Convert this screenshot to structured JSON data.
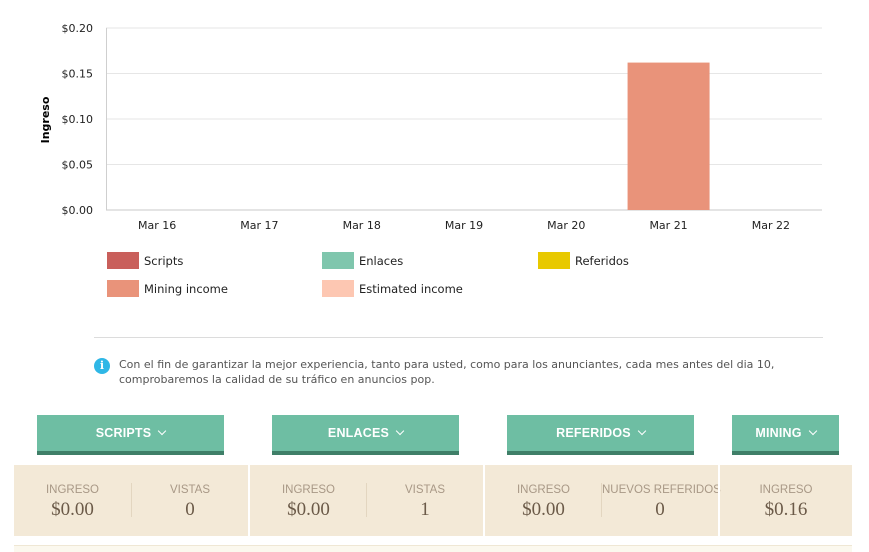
{
  "chart_data": {
    "type": "bar",
    "categories": [
      "Mar 16",
      "Mar 17",
      "Mar 18",
      "Mar 19",
      "Mar 20",
      "Mar 21",
      "Mar 22"
    ],
    "series": [
      {
        "name": "Scripts",
        "color": "#c95f5b",
        "values": [
          0,
          0,
          0,
          0,
          0,
          0,
          0
        ]
      },
      {
        "name": "Enlaces",
        "color": "#7fc6ad",
        "values": [
          0,
          0,
          0,
          0,
          0,
          0,
          0
        ]
      },
      {
        "name": "Referidos",
        "color": "#e8c900",
        "values": [
          0,
          0,
          0,
          0,
          0,
          0,
          0
        ]
      },
      {
        "name": "Mining income",
        "color": "#e9937a",
        "values": [
          0,
          0,
          0,
          0,
          0,
          0.162,
          0
        ]
      },
      {
        "name": "Estimated income",
        "color": "#fdc7b2",
        "values": [
          0,
          0,
          0,
          0,
          0,
          0,
          0
        ]
      }
    ],
    "ylabel": "Ingreso",
    "yticks": [
      "$0.00",
      "$0.05",
      "$0.10",
      "$0.15",
      "$0.20"
    ],
    "ylim": [
      0,
      0.2
    ],
    "grid": true,
    "stacked": true
  },
  "notice": {
    "icon": "info-icon",
    "text": "Con el fin de garantizar la mejor experiencia, tanto para usted, como para los anunciantes, cada mes antes del dia 10, comprobaremos la calidad de su tráfico en anuncios pop."
  },
  "tabs": [
    {
      "label": "SCRIPTS"
    },
    {
      "label": "ENLACES"
    },
    {
      "label": "REFERIDOS"
    },
    {
      "label": "MINING"
    }
  ],
  "stats": {
    "scripts": {
      "income_label": "INGRESO",
      "income": "$0.00",
      "views_label": "VISTAS",
      "views": "0"
    },
    "enlaces": {
      "income_label": "INGRESO",
      "income": "$0.00",
      "views_label": "VISTAS",
      "views": "1"
    },
    "referidos": {
      "income_label": "INGRESO",
      "income": "$0.00",
      "new_label": "NUEVOS REFERIDOS",
      "new": "0"
    },
    "mining": {
      "income_label": "INGRESO",
      "income": "$0.16"
    }
  },
  "colors": {
    "tab_bg": "#6ebea3",
    "tab_border": "#3f7f68",
    "stats_bg": "#f3e9d7"
  }
}
